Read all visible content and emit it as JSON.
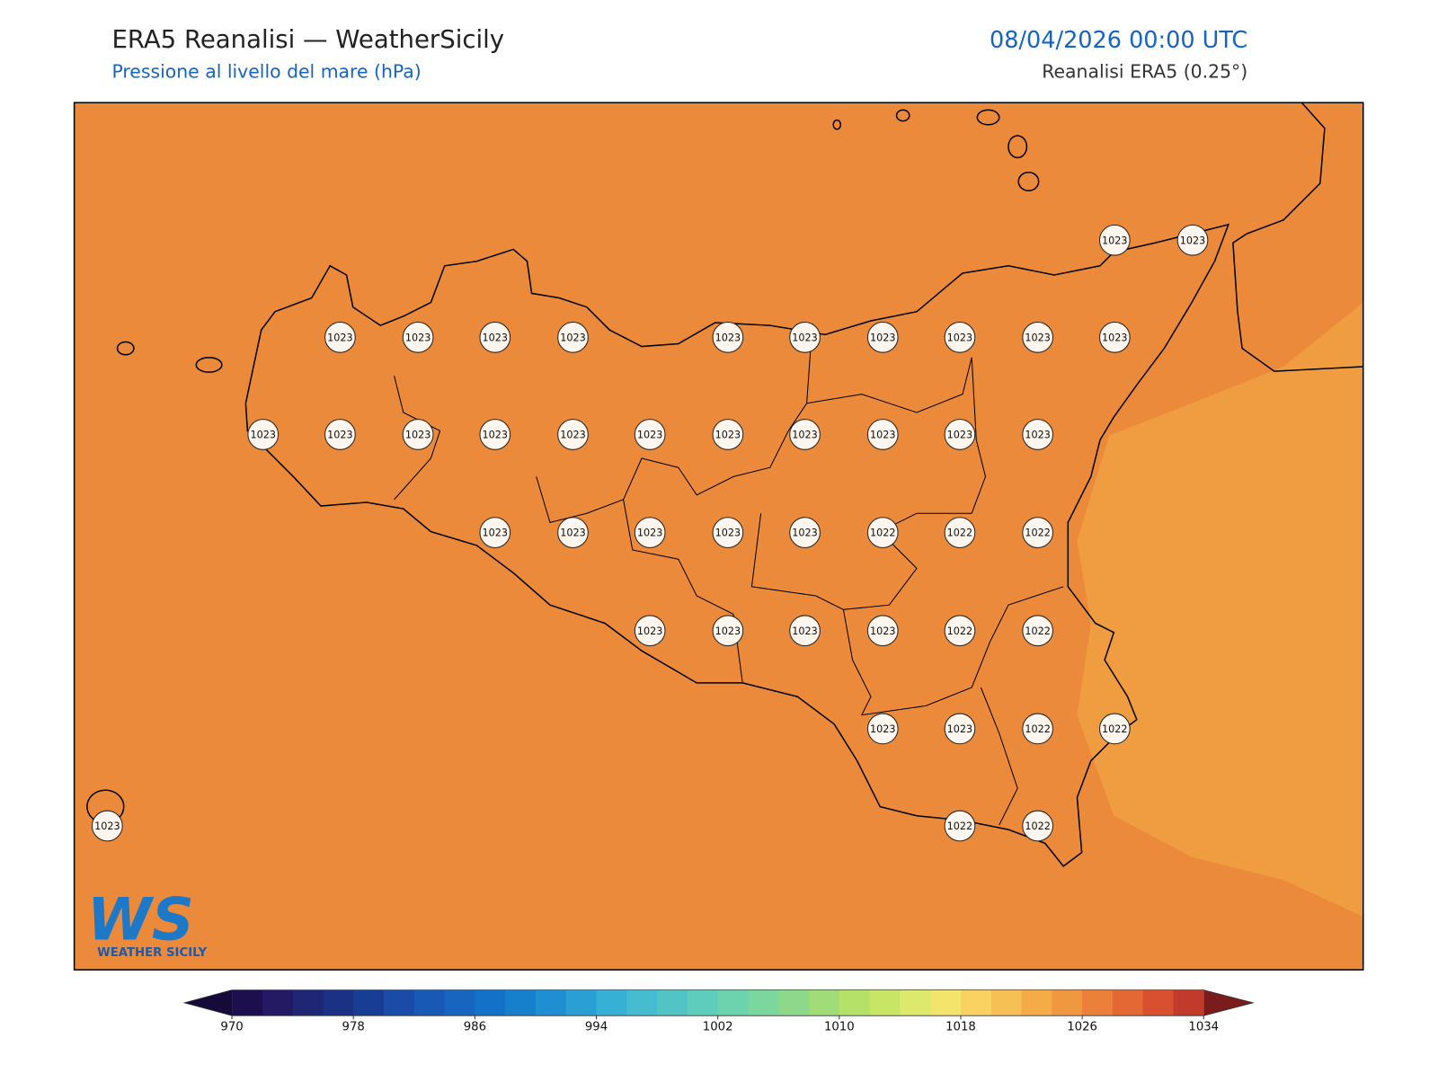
{
  "header": {
    "title": "ERA5 Reanalisi — WeatherSicily",
    "subtitle": "Pressione al livello del mare (hPa)",
    "datetime": "08/04/2026 00:00 UTC",
    "source": "Reanalisi ERA5 (0.25°)"
  },
  "map": {
    "stations": [
      1023,
      1023,
      1023,
      1023,
      1023,
      1023,
      1023,
      1023,
      1023,
      1023,
      1023,
      1023,
      1023,
      1023,
      1023,
      1023,
      1023,
      1023,
      1023,
      1023,
      1023,
      1023,
      1023,
      1023,
      1023,
      1023,
      1023,
      1023,
      1022,
      1022,
      1022,
      1023,
      1023,
      1023,
      1023,
      1022,
      1022,
      1023,
      1023,
      1022,
      1022,
      1023,
      1022,
      1022
    ],
    "sea_color": "#ec8a3c",
    "high_color": "#f09c40"
  },
  "colorbar": {
    "clim": [
      970,
      1034
    ],
    "ticks": [
      970,
      978,
      986,
      994,
      1002,
      1010,
      1018,
      1026,
      1034
    ],
    "colors": [
      "#1d0f4d",
      "#231a63",
      "#1f2673",
      "#1b3183",
      "#183d94",
      "#1a4ba6",
      "#1759b4",
      "#1765bf",
      "#1471c8",
      "#1680cd",
      "#1f8fd1",
      "#2a9fd4",
      "#36b0d4",
      "#45bccf",
      "#52c4c6",
      "#5ecdbb",
      "#6cd3ae",
      "#7cd79e",
      "#8ed88b",
      "#a0dc78",
      "#b5e168",
      "#c9e566",
      "#dde96d",
      "#f3e46c",
      "#f9d261",
      "#f7c054",
      "#f5ac48",
      "#f0983f",
      "#ea803a",
      "#e36834",
      "#d8502f",
      "#c23a2c"
    ],
    "under_color": "#150a3a",
    "over_color": "#7a1c1c"
  },
  "logo": {
    "mark": "WS",
    "text": "WEATHER SICILY"
  }
}
